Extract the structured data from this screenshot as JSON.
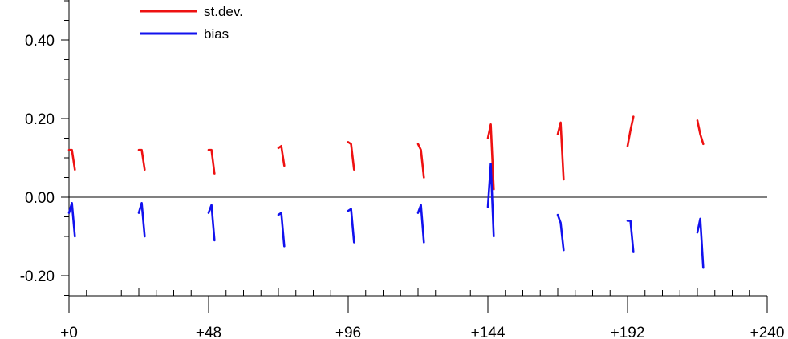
{
  "chart_data": {
    "type": "line",
    "title": "",
    "xlabel": "",
    "ylabel": "",
    "xlim": [
      0,
      240
    ],
    "ylim": [
      -0.25,
      0.5
    ],
    "x_ticks": [
      "+0",
      "+48",
      "+96",
      "+144",
      "+192",
      "+240"
    ],
    "x_tick_values": [
      0,
      48,
      96,
      144,
      192,
      240
    ],
    "y_ticks": [
      "-0.20",
      "0.00",
      "0.20",
      "0.40"
    ],
    "y_tick_values": [
      -0.2,
      0.0,
      0.2,
      0.4
    ],
    "zero_line": true,
    "grid": false,
    "legend_position": "top-left",
    "series": [
      {
        "name": "st.dev.",
        "color": "#ee1111",
        "segments": [
          [
            [
              0,
              0.12
            ],
            [
              1,
              0.12
            ],
            [
              2,
              0.07
            ]
          ],
          [
            [
              24,
              0.12
            ],
            [
              25,
              0.12
            ],
            [
              26,
              0.07
            ]
          ],
          [
            [
              48,
              0.12
            ],
            [
              49,
              0.12
            ],
            [
              50,
              0.06
            ]
          ],
          [
            [
              72,
              0.125
            ],
            [
              73,
              0.13
            ],
            [
              74,
              0.08
            ]
          ],
          [
            [
              96,
              0.14
            ],
            [
              97,
              0.135
            ],
            [
              98,
              0.07
            ]
          ],
          [
            [
              120,
              0.135
            ],
            [
              121,
              0.12
            ],
            [
              122,
              0.05
            ]
          ],
          [
            [
              144,
              0.15
            ],
            [
              145,
              0.185
            ],
            [
              146,
              0.02
            ]
          ],
          [
            [
              168,
              0.16
            ],
            [
              169,
              0.19
            ],
            [
              170,
              0.045
            ]
          ],
          [
            [
              192,
              0.13
            ],
            [
              193,
              0.17
            ],
            [
              194,
              0.205
            ]
          ],
          [
            [
              216,
              0.195
            ],
            [
              217,
              0.16
            ],
            [
              218,
              0.135
            ]
          ]
        ]
      },
      {
        "name": "bias",
        "color": "#1111ee",
        "segments": [
          [
            [
              0,
              -0.04
            ],
            [
              1,
              -0.015
            ],
            [
              2,
              -0.1
            ]
          ],
          [
            [
              24,
              -0.04
            ],
            [
              25,
              -0.015
            ],
            [
              26,
              -0.1
            ]
          ],
          [
            [
              48,
              -0.04
            ],
            [
              49,
              -0.02
            ],
            [
              50,
              -0.11
            ]
          ],
          [
            [
              72,
              -0.045
            ],
            [
              73,
              -0.04
            ],
            [
              74,
              -0.125
            ]
          ],
          [
            [
              96,
              -0.035
            ],
            [
              97,
              -0.03
            ],
            [
              98,
              -0.115
            ]
          ],
          [
            [
              120,
              -0.04
            ],
            [
              121,
              -0.02
            ],
            [
              122,
              -0.115
            ]
          ],
          [
            [
              144,
              -0.025
            ],
            [
              145,
              0.085
            ],
            [
              146,
              -0.1
            ]
          ],
          [
            [
              168,
              -0.045
            ],
            [
              169,
              -0.065
            ],
            [
              170,
              -0.135
            ]
          ],
          [
            [
              192,
              -0.06
            ],
            [
              193,
              -0.06
            ],
            [
              194,
              -0.14
            ]
          ],
          [
            [
              216,
              -0.09
            ],
            [
              217,
              -0.055
            ],
            [
              218,
              -0.18
            ]
          ]
        ]
      }
    ]
  }
}
